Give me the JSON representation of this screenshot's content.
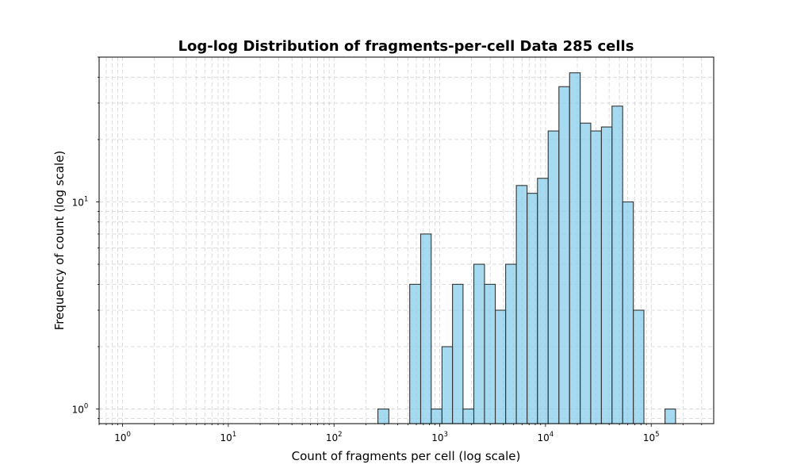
{
  "chart_data": {
    "type": "bar",
    "title": "Log-log Distribution of fragments-per-cell Data 285 cells",
    "xlabel": "Count of fragments per cell (log scale)",
    "ylabel": "Frequency of count (log scale)",
    "x_scale": "log",
    "y_scale": "log",
    "xlim": [
      0.6,
      390000
    ],
    "ylim": [
      0.85,
      50
    ],
    "grid": true,
    "grid_style": "dashed, major and minor",
    "bar_color": "#87CEEB",
    "bar_edge_color": "#333333",
    "x_ticks": [
      {
        "base": "10",
        "exp": "0",
        "value": 1
      },
      {
        "base": "10",
        "exp": "1",
        "value": 10
      },
      {
        "base": "10",
        "exp": "2",
        "value": 100
      },
      {
        "base": "10",
        "exp": "3",
        "value": 1000
      },
      {
        "base": "10",
        "exp": "4",
        "value": 10000
      },
      {
        "base": "10",
        "exp": "5",
        "value": 100000
      }
    ],
    "y_ticks": [
      {
        "base": "10",
        "exp": "0",
        "value": 1
      },
      {
        "base": "10",
        "exp": "1",
        "value": 10
      }
    ],
    "bins": [
      {
        "x0": 260,
        "x1": 330,
        "count": 1
      },
      {
        "x0": 520,
        "x1": 660,
        "count": 4
      },
      {
        "x0": 660,
        "x1": 830,
        "count": 7
      },
      {
        "x0": 830,
        "x1": 1050,
        "count": 1
      },
      {
        "x0": 1050,
        "x1": 1320,
        "count": 2
      },
      {
        "x0": 1320,
        "x1": 1660,
        "count": 4
      },
      {
        "x0": 1660,
        "x1": 2100,
        "count": 1
      },
      {
        "x0": 2100,
        "x1": 2650,
        "count": 5
      },
      {
        "x0": 2650,
        "x1": 3350,
        "count": 4
      },
      {
        "x0": 3350,
        "x1": 4200,
        "count": 3
      },
      {
        "x0": 4200,
        "x1": 5300,
        "count": 5
      },
      {
        "x0": 5300,
        "x1": 6700,
        "count": 12
      },
      {
        "x0": 6700,
        "x1": 8400,
        "count": 11
      },
      {
        "x0": 8400,
        "x1": 10600,
        "count": 13
      },
      {
        "x0": 10600,
        "x1": 13400,
        "count": 22
      },
      {
        "x0": 13400,
        "x1": 16900,
        "count": 36
      },
      {
        "x0": 16900,
        "x1": 21300,
        "count": 42
      },
      {
        "x0": 21300,
        "x1": 26800,
        "count": 24
      },
      {
        "x0": 26800,
        "x1": 33800,
        "count": 22
      },
      {
        "x0": 33800,
        "x1": 42600,
        "count": 23
      },
      {
        "x0": 42600,
        "x1": 53700,
        "count": 29
      },
      {
        "x0": 53700,
        "x1": 67700,
        "count": 10
      },
      {
        "x0": 67700,
        "x1": 85300,
        "count": 3
      },
      {
        "x0": 135000,
        "x1": 170000,
        "count": 1
      }
    ]
  }
}
